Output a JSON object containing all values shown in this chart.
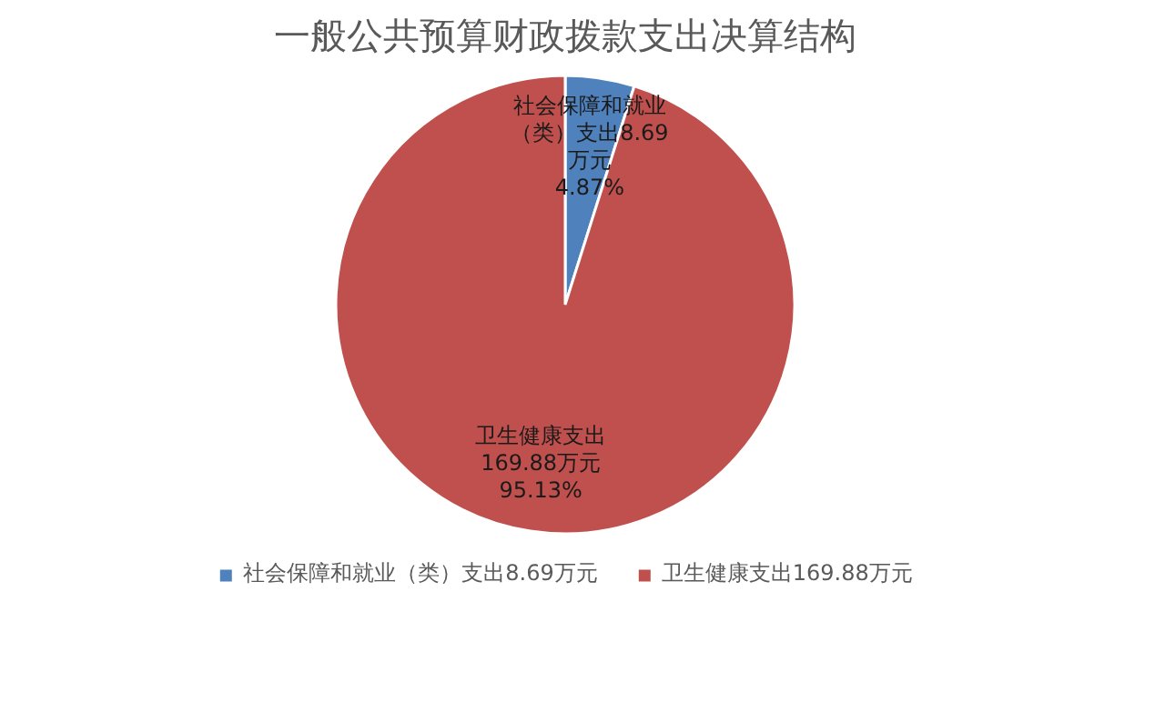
{
  "chart_data": {
    "type": "pie",
    "title": "一般公共预算财政拨款支出决算结构",
    "categories": [
      "社会保障和就业（类）支出8.69万元",
      "卫生健康支出169.88万元"
    ],
    "values": [
      8.69,
      169.88
    ],
    "colors": [
      "#4f81bd",
      "#c0504d"
    ],
    "value_labels": [
      "社会保障和就业（类）支出8.69万元\n4.87%",
      "卫生健康支出\n169.88万元\n95.13%"
    ],
    "legend": "bottom"
  }
}
